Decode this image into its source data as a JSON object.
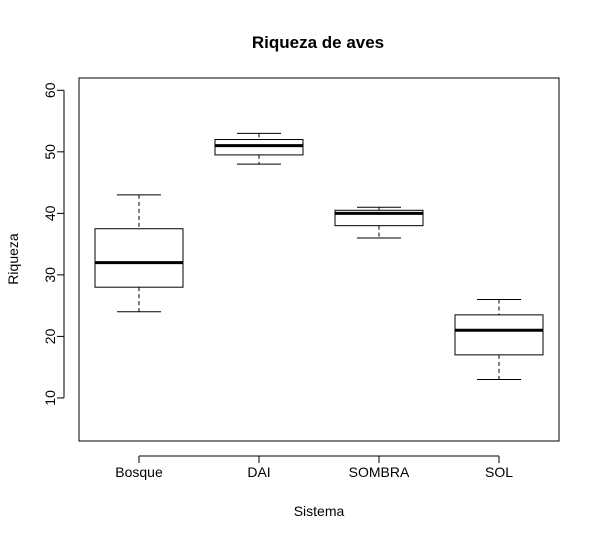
{
  "chart_data": {
    "type": "boxplot",
    "title": "Riqueza de aves",
    "xlabel": "Sistema",
    "ylabel": "Riqueza",
    "ylim": [
      3,
      62
    ],
    "yticks": [
      10,
      20,
      30,
      40,
      50,
      60
    ],
    "grid": false,
    "categories": [
      "Bosque",
      "DAI",
      "SOMBRA",
      "SOL"
    ],
    "boxes": [
      {
        "category": "Bosque",
        "min": 24,
        "q1": 28,
        "median": 32,
        "q3": 37.5,
        "max": 43
      },
      {
        "category": "DAI",
        "min": 48,
        "q1": 49.5,
        "median": 51,
        "q3": 52,
        "max": 53
      },
      {
        "category": "SOMBRA",
        "min": 36,
        "q1": 38,
        "median": 40,
        "q3": 40.5,
        "max": 41
      },
      {
        "category": "SOL",
        "min": 13,
        "q1": 17,
        "median": 21,
        "q3": 23.5,
        "max": 26
      }
    ]
  }
}
